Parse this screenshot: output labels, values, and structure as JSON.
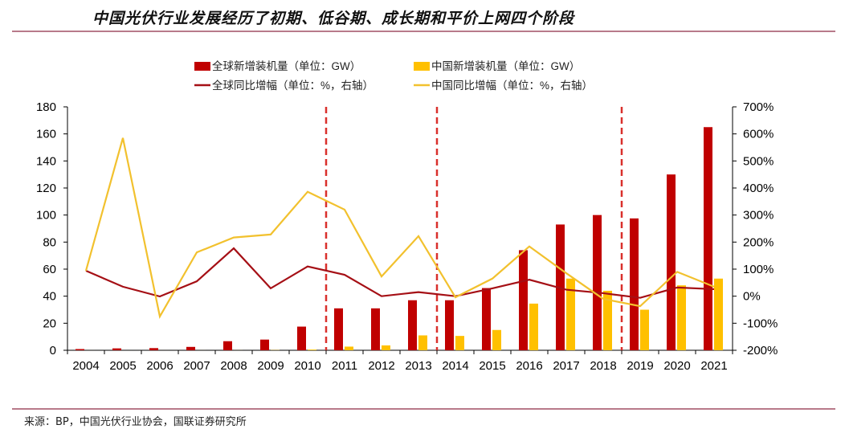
{
  "header": {
    "title": "中国光伏行业发展经历了初期、低谷期、成长期和平价上网四个阶段"
  },
  "footer": {
    "source": "来源：BP，中国光伏行业协会，国联证券研究所"
  },
  "colors": {
    "global": "#c00000",
    "china": "#ffc000",
    "global_line": "#a50f15",
    "china_line": "#f2c12e",
    "divider": "#d9302c",
    "rule": "#b87a8a"
  },
  "chart_data": {
    "type": "bar+line",
    "title": "",
    "categories": [
      "2004",
      "2005",
      "2006",
      "2007",
      "2008",
      "2009",
      "2010",
      "2011",
      "2012",
      "2013",
      "2014",
      "2015",
      "2016",
      "2017",
      "2018",
      "2019",
      "2020",
      "2021"
    ],
    "left_axis": {
      "ylim": [
        0,
        180
      ],
      "ticks": [
        "0",
        "20",
        "40",
        "60",
        "80",
        "100",
        "120",
        "140",
        "160",
        "180"
      ]
    },
    "right_axis": {
      "ylim": [
        -200,
        700
      ],
      "ticks": [
        "-200%",
        "-100%",
        "0%",
        "100%",
        "200%",
        "300%",
        "400%",
        "500%",
        "600%",
        "700%"
      ]
    },
    "series": [
      {
        "name": "全球新增装机量（单位：GW）",
        "kind": "bar",
        "axis": "left",
        "color": "#c00000",
        "values": [
          0.9,
          1.4,
          1.6,
          2.5,
          6.7,
          7.9,
          17.5,
          31,
          31,
          37,
          37,
          46,
          74,
          93,
          100,
          97.5,
          130,
          165
        ]
      },
      {
        "name": "中国新增装机量（单位：GW）",
        "kind": "bar",
        "axis": "left",
        "color": "#ffc000",
        "values": [
          0.01,
          0.005,
          0.01,
          0.02,
          0.04,
          0.16,
          0.5,
          2.7,
          3.6,
          11,
          10.6,
          15,
          34.5,
          53,
          44,
          30,
          48,
          53
        ]
      },
      {
        "name": "全球同比增幅（单位：%，右轴）",
        "kind": "line",
        "axis": "right",
        "color": "#a50f15",
        "values": [
          94,
          35,
          -1,
          55,
          177,
          29,
          110,
          79,
          0,
          15,
          0,
          29,
          61,
          24,
          11,
          -6,
          32,
          26
        ]
      },
      {
        "name": "中国同比增幅（单位：%，右轴）",
        "kind": "line",
        "axis": "right",
        "color": "#f2c12e",
        "values": [
          94,
          585,
          -75,
          162,
          217,
          228,
          386,
          320,
          73,
          222,
          -4,
          65,
          184,
          85,
          -10,
          -37,
          90,
          35
        ]
      }
    ],
    "phase_dividers_after": [
      "2010",
      "2013",
      "2018"
    ],
    "legend": "top-center",
    "grid": false
  }
}
